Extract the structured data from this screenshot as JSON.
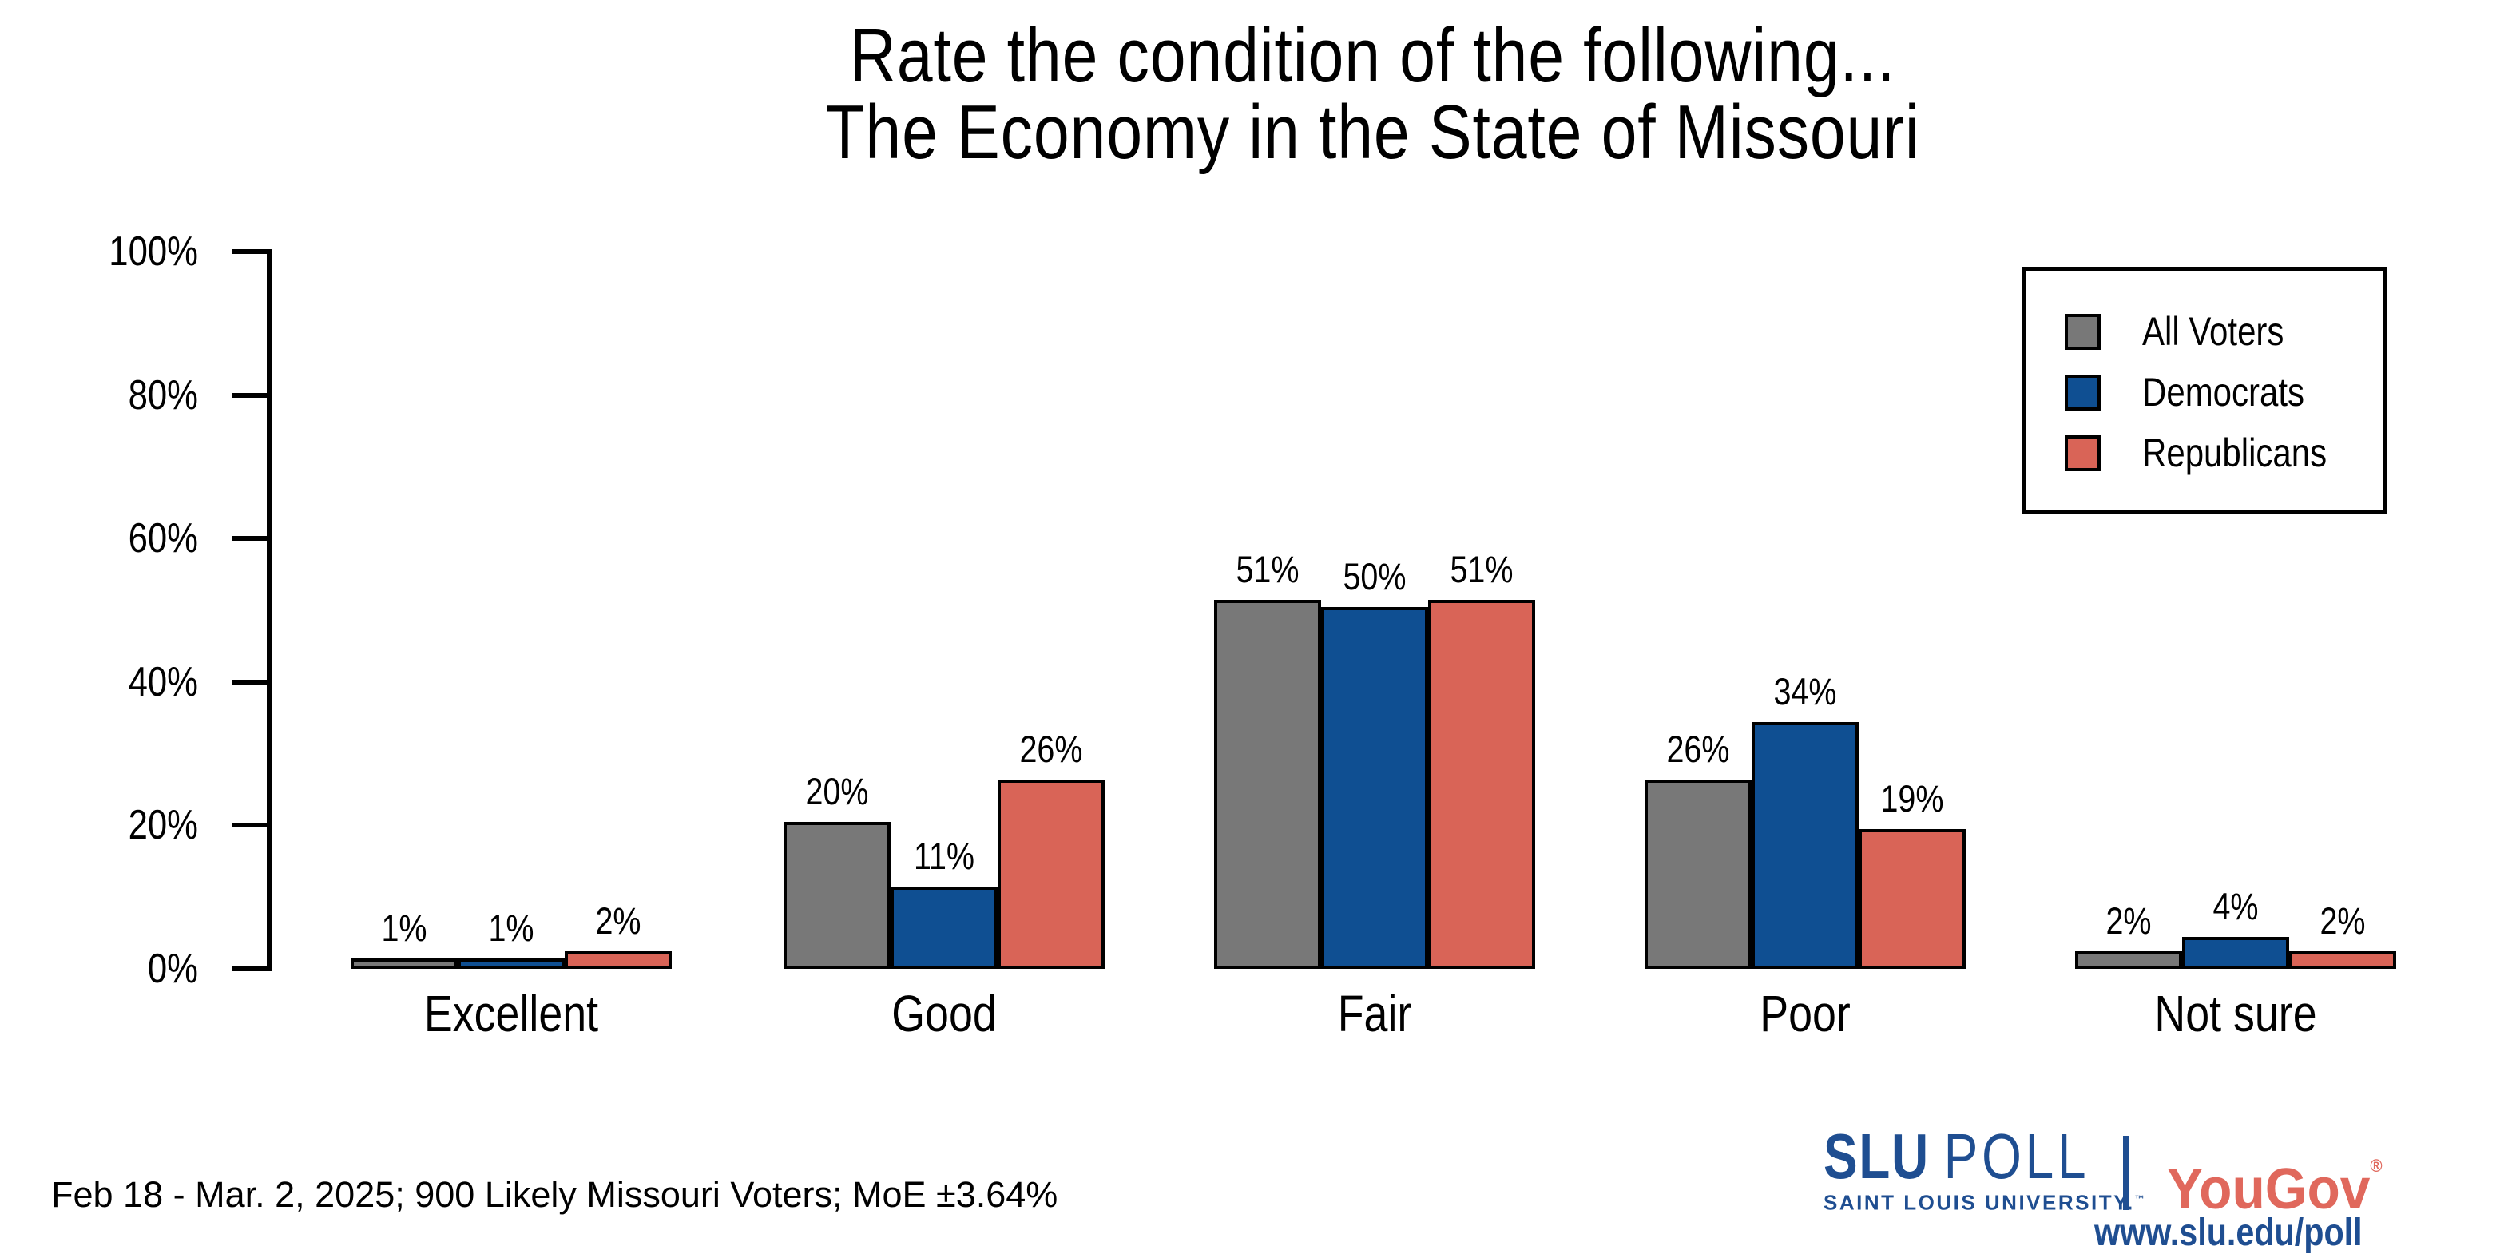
{
  "title": {
    "line1": "Rate the condition of the following...",
    "line2": "The Economy in the State of Missouri"
  },
  "chart_data": {
    "type": "bar",
    "categories": [
      "Excellent",
      "Good",
      "Fair",
      "Poor",
      "Not sure"
    ],
    "series": [
      {
        "name": "All Voters",
        "color": "#787878",
        "values": [
          1,
          20,
          51,
          26,
          2
        ]
      },
      {
        "name": "Democrats",
        "color": "#0F4F92",
        "values": [
          1,
          11,
          50,
          34,
          4
        ]
      },
      {
        "name": "Republicans",
        "color": "#D96457",
        "values": [
          2,
          26,
          51,
          19,
          2
        ]
      }
    ],
    "value_label_suffix": "%",
    "y_ticks": [
      0,
      20,
      40,
      60,
      80,
      100
    ],
    "y_tick_suffix": "%",
    "ylim": [
      0,
      100
    ],
    "bar_edge_color": "#000000",
    "grid": false,
    "legend_position": "upper right"
  },
  "footer": {
    "note": "Feb 18 - Mar. 2, 2025; 900 Likely Missouri Voters; MoE ±3.64%"
  },
  "branding": {
    "slu_bold": "SLU",
    "slu_rest": "POLL",
    "slu_sub": "SAINT LOUIS UNIVERSITY.",
    "slu_tm": "™",
    "yougov": "YouGov",
    "yougov_reg": "®",
    "url": "www.slu.edu/poll",
    "slu_blue": "#1F4E91",
    "yougov_red": "#E0685C"
  }
}
